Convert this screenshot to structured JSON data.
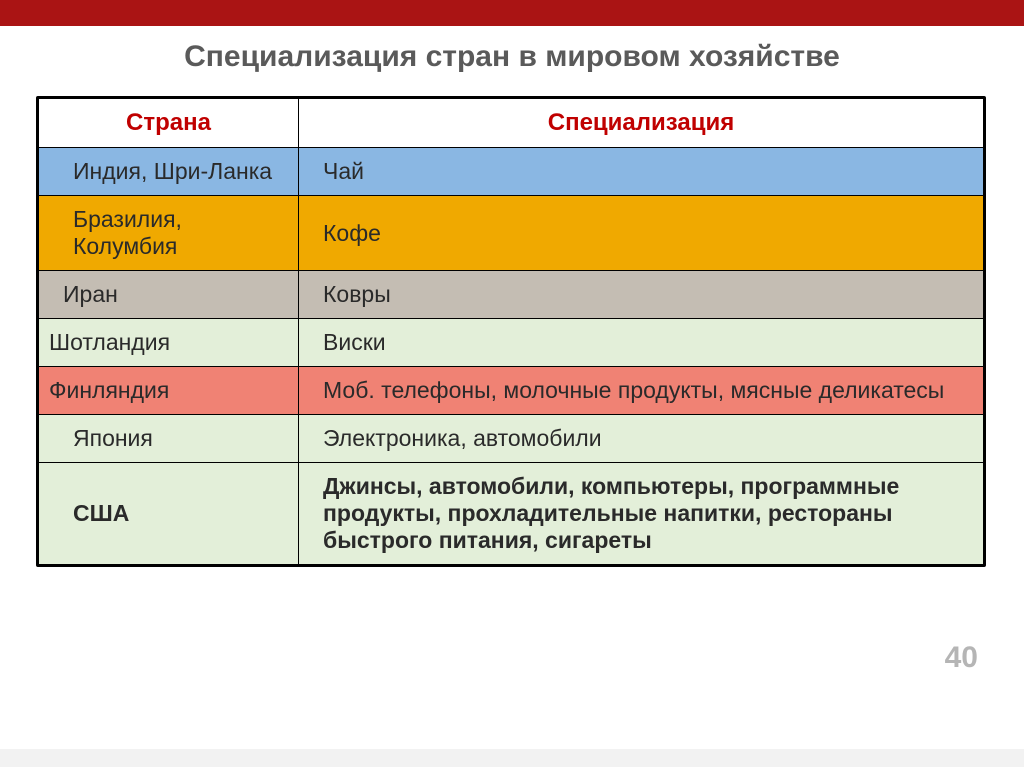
{
  "title": {
    "text": "Специализация стран в мировом хозяйстве",
    "color": "#5a5a5a",
    "fontsize": 30
  },
  "top_bar_color": "#aa1414",
  "slide_number": "40",
  "slide_number_color": "#7a7a7a",
  "slide_number_fontsize": 30,
  "table": {
    "header_bg": "#ffffff",
    "header_color": "#c00000",
    "header_fontsize": 24,
    "cell_fontsize": 23,
    "cell_color": "#2a2a2a",
    "border_color": "#000000",
    "columns": [
      "Страна",
      "Специализация"
    ],
    "rows": [
      {
        "country": "Индия, Шри-Ланка",
        "spec": "Чай",
        "bg": "#8ab7e3",
        "country_pad_left": 34,
        "bold": false
      },
      {
        "country": "Бразилия, Колумбия",
        "spec": "Кофе",
        "bg": "#f0a900",
        "country_pad_left": 34,
        "bold": false
      },
      {
        "country": "Иран",
        "spec": "Ковры",
        "bg": "#c4bdb3",
        "country_pad_left": 24,
        "bold": false
      },
      {
        "country": "Шотландия",
        "spec": "Виски",
        "bg": "#e3efd9",
        "country_pad_left": 10,
        "bold": false
      },
      {
        "country": "Финляндия",
        "spec": "Моб. телефоны, молочные продукты, мясные деликатесы",
        "bg": "#f08274",
        "country_pad_left": 10,
        "bold": false
      },
      {
        "country": "Япония",
        "spec": "Электроника, автомобили",
        "bg": "#e3efd9",
        "country_pad_left": 34,
        "bold": false
      },
      {
        "country": "США",
        "spec": "Джинсы, автомобили, компьютеры, программные продукты, прохладительные напитки, рестораны быстрого питания, сигареты",
        "bg": "#e3efd9",
        "country_pad_left": 34,
        "bold": true
      }
    ]
  }
}
